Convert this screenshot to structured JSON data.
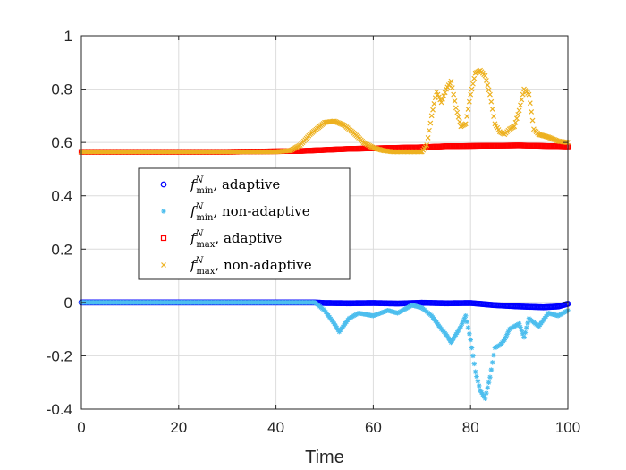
{
  "chart_data": {
    "type": "scatter",
    "title": "",
    "xlabel": "Time",
    "ylabel": "",
    "xlim": [
      0,
      100
    ],
    "ylim": [
      -0.4,
      1
    ],
    "xticks": [
      0,
      20,
      40,
      60,
      80,
      100
    ],
    "yticks": [
      -0.4,
      -0.2,
      0,
      0.2,
      0.4,
      0.6,
      0.8,
      1
    ],
    "xtick_labels": [
      "0",
      "20",
      "40",
      "60",
      "80",
      "100"
    ],
    "ytick_labels": [
      "-0.4",
      "-0.2",
      "0",
      "0.2",
      "0.4",
      "0.6",
      "0.8",
      "1"
    ],
    "grid": true,
    "legend_position": "center-left",
    "series": [
      {
        "name": "f_min^N, adaptive",
        "legend_symbol": "f",
        "legend_sup": "N",
        "legend_sub": "min",
        "legend_rest": ", adaptive",
        "marker": "circle",
        "color": "#0000FF",
        "x": [
          0,
          10,
          20,
          30,
          40,
          48,
          50,
          55,
          60,
          65,
          70,
          75,
          80,
          85,
          90,
          95,
          98,
          100
        ],
        "values": [
          0.0,
          0.0,
          0.0,
          0.0,
          0.0,
          0.0,
          -0.002,
          -0.003,
          -0.002,
          -0.004,
          -0.001,
          -0.003,
          -0.002,
          -0.01,
          -0.015,
          -0.018,
          -0.015,
          -0.005
        ]
      },
      {
        "name": "f_min^N, non-adaptive",
        "legend_symbol": "f",
        "legend_sup": "N",
        "legend_sub": "min",
        "legend_rest": ", non-adaptive",
        "marker": "asterisk",
        "color": "#4DBEEE",
        "x": [
          0,
          10,
          20,
          30,
          40,
          48,
          50,
          52,
          53,
          55,
          57,
          60,
          63,
          65,
          68,
          70,
          72,
          74,
          75,
          76,
          78,
          79,
          80,
          81,
          82,
          83,
          84,
          85,
          86,
          87,
          88,
          90,
          91,
          92,
          94,
          96,
          98,
          100
        ],
        "values": [
          0.0,
          0.0,
          0.0,
          0.0,
          0.0,
          0.0,
          -0.03,
          -0.08,
          -0.11,
          -0.06,
          -0.04,
          -0.05,
          -0.03,
          -0.04,
          -0.01,
          -0.02,
          -0.05,
          -0.1,
          -0.12,
          -0.15,
          -0.09,
          -0.05,
          -0.14,
          -0.26,
          -0.33,
          -0.36,
          -0.28,
          -0.17,
          -0.16,
          -0.14,
          -0.1,
          -0.08,
          -0.13,
          -0.06,
          -0.09,
          -0.04,
          -0.05,
          -0.03
        ]
      },
      {
        "name": "f_max^N, adaptive",
        "legend_symbol": "f",
        "legend_sup": "N",
        "legend_sub": "max",
        "legend_rest": ", adaptive",
        "marker": "square",
        "color": "#FF0000",
        "x": [
          0,
          10,
          20,
          30,
          40,
          45,
          50,
          55,
          60,
          65,
          70,
          75,
          80,
          85,
          90,
          95,
          100
        ],
        "values": [
          0.565,
          0.565,
          0.565,
          0.565,
          0.567,
          0.568,
          0.572,
          0.576,
          0.578,
          0.58,
          0.582,
          0.586,
          0.587,
          0.588,
          0.589,
          0.587,
          0.585
        ]
      },
      {
        "name": "f_max^N, non-adaptive",
        "legend_symbol": "f",
        "legend_sup": "N",
        "legend_sub": "max",
        "legend_rest": ", non-adaptive",
        "marker": "cross",
        "color": "#EDB120",
        "x": [
          0,
          10,
          20,
          30,
          40,
          43,
          45,
          47,
          49,
          50,
          52,
          54,
          56,
          58,
          60,
          62,
          64,
          66,
          68,
          70,
          71,
          72,
          73,
          74,
          75,
          76,
          77,
          78,
          79,
          80,
          81,
          82,
          83,
          84,
          85,
          86,
          87,
          88,
          89,
          90,
          91,
          92,
          93,
          94,
          96,
          98,
          100
        ],
        "values": [
          0.565,
          0.565,
          0.565,
          0.565,
          0.565,
          0.57,
          0.59,
          0.63,
          0.66,
          0.675,
          0.68,
          0.665,
          0.635,
          0.6,
          0.58,
          0.57,
          0.565,
          0.565,
          0.565,
          0.565,
          0.59,
          0.7,
          0.79,
          0.75,
          0.8,
          0.83,
          0.73,
          0.66,
          0.67,
          0.78,
          0.86,
          0.87,
          0.85,
          0.78,
          0.67,
          0.64,
          0.63,
          0.65,
          0.66,
          0.72,
          0.8,
          0.78,
          0.65,
          0.63,
          0.62,
          0.605,
          0.6
        ]
      }
    ]
  }
}
